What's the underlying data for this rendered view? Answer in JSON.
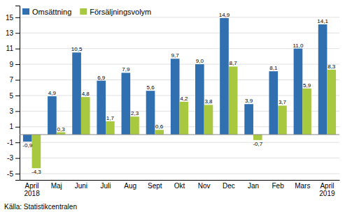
{
  "chart_data": {
    "type": "bar",
    "categories": [
      "April\n2018",
      "Maj",
      "Juni",
      "Juli",
      "Aug",
      "Sept",
      "Okt",
      "Nov",
      "Dec",
      "Jan",
      "Feb",
      "Mars",
      "April\n2019"
    ],
    "series": [
      {
        "name": "Omsättning",
        "color": "#3070B0",
        "values": [
          -0.9,
          4.9,
          10.5,
          6.9,
          7.9,
          5.6,
          9.7,
          9.0,
          14.9,
          3.9,
          8.1,
          11.0,
          14.1
        ],
        "value_labels": [
          "-0,9",
          "4,9",
          "10,5",
          "6,9",
          "7,9",
          "5,6",
          "9,7",
          "9,0",
          "14,9",
          "3,9",
          "8,1",
          "11,0",
          "14,1"
        ]
      },
      {
        "name": "Försäljningsvolym",
        "color": "#A8C840",
        "values": [
          -4.3,
          0.3,
          4.8,
          1.7,
          2.3,
          0.6,
          4.2,
          3.8,
          8.7,
          -0.7,
          3.7,
          5.9,
          8.3
        ],
        "value_labels": [
          "-4,3",
          "0,3",
          "4,8",
          "1,7",
          "2,3",
          "0,6",
          "4,2",
          "3,8",
          "8,7",
          "-0,7",
          "3,7",
          "5,9",
          "8,3"
        ]
      }
    ],
    "ylim": [
      -5.8,
      16.5
    ],
    "yticks": [
      -5,
      -3,
      -1,
      1,
      3,
      5,
      7,
      9,
      11,
      13,
      15
    ],
    "grid": true,
    "legend": "upper left",
    "data_labels": true,
    "annotations": [
      "Källa: Statistikcentralen"
    ]
  }
}
